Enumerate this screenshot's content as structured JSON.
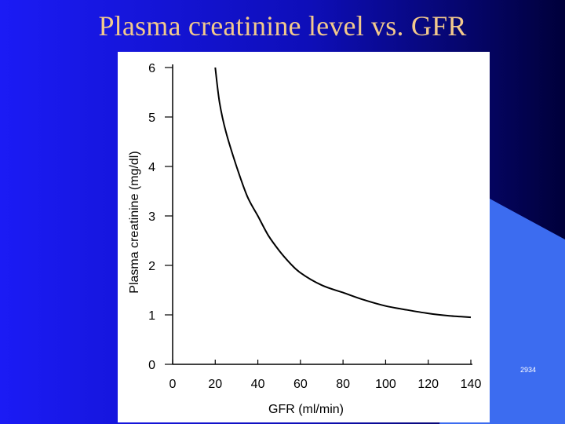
{
  "slide": {
    "title": "Plasma creatinine level vs. GFR",
    "number": "2934",
    "colors": {
      "background_left": "#1b1bf5",
      "background_right": "#00003a",
      "accent_shape": "#3c6cf0",
      "title": "#f2c98c"
    }
  },
  "chart_data": {
    "type": "line",
    "title": "",
    "xlabel": "GFR (ml/min)",
    "ylabel": "Plasma creatinine (mg/dl)",
    "xlim": [
      0,
      140
    ],
    "ylim": [
      0,
      6
    ],
    "x_ticks": [
      "0",
      "20",
      "40",
      "60",
      "80",
      "100",
      "120",
      "140"
    ],
    "y_ticks": [
      "0",
      "1",
      "2",
      "3",
      "4",
      "5",
      "6"
    ],
    "grid": false,
    "legend": "none",
    "series": [
      {
        "x": [
          20,
          22,
          25,
          30,
          35,
          40,
          45,
          50,
          55,
          60,
          70,
          80,
          90,
          100,
          110,
          120,
          130,
          140
        ],
        "values": [
          6.0,
          5.3,
          4.7,
          4.0,
          3.4,
          3.0,
          2.6,
          2.3,
          2.05,
          1.85,
          1.6,
          1.45,
          1.3,
          1.18,
          1.1,
          1.03,
          0.98,
          0.95
        ]
      }
    ]
  }
}
